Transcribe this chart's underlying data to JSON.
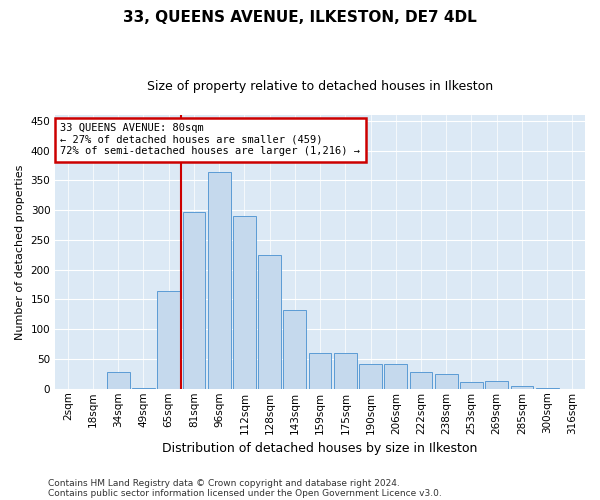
{
  "title": "33, QUEENS AVENUE, ILKESTON, DE7 4DL",
  "subtitle": "Size of property relative to detached houses in Ilkeston",
  "xlabel": "Distribution of detached houses by size in Ilkeston",
  "ylabel": "Number of detached properties",
  "footnote1": "Contains HM Land Registry data © Crown copyright and database right 2024.",
  "footnote2": "Contains public sector information licensed under the Open Government Licence v3.0.",
  "categories": [
    "2sqm",
    "18sqm",
    "34sqm",
    "49sqm",
    "65sqm",
    "81sqm",
    "96sqm",
    "112sqm",
    "128sqm",
    "143sqm",
    "159sqm",
    "175sqm",
    "190sqm",
    "206sqm",
    "222sqm",
    "238sqm",
    "253sqm",
    "269sqm",
    "285sqm",
    "300sqm",
    "316sqm"
  ],
  "values": [
    0,
    0,
    28,
    1,
    165,
    297,
    365,
    290,
    225,
    133,
    60,
    60,
    42,
    42,
    29,
    24,
    11,
    13,
    5,
    1,
    0
  ],
  "bar_color": "#c5d9ed",
  "bar_edge_color": "#5b9bd5",
  "bg_color": "#dce9f5",
  "grid_color": "#ffffff",
  "marker_label": "33 QUEENS AVENUE: 80sqm",
  "annotation_line1": "← 27% of detached houses are smaller (459)",
  "annotation_line2": "72% of semi-detached houses are larger (1,216) →",
  "annotation_box_color": "#ffffff",
  "annotation_border_color": "#cc0000",
  "marker_line_color": "#cc0000",
  "ylim": [
    0,
    460
  ],
  "yticks": [
    0,
    50,
    100,
    150,
    200,
    250,
    300,
    350,
    400,
    450
  ],
  "title_fontsize": 11,
  "subtitle_fontsize": 9,
  "ylabel_fontsize": 8,
  "xlabel_fontsize": 9,
  "tick_fontsize": 7.5,
  "footnote_fontsize": 6.5
}
